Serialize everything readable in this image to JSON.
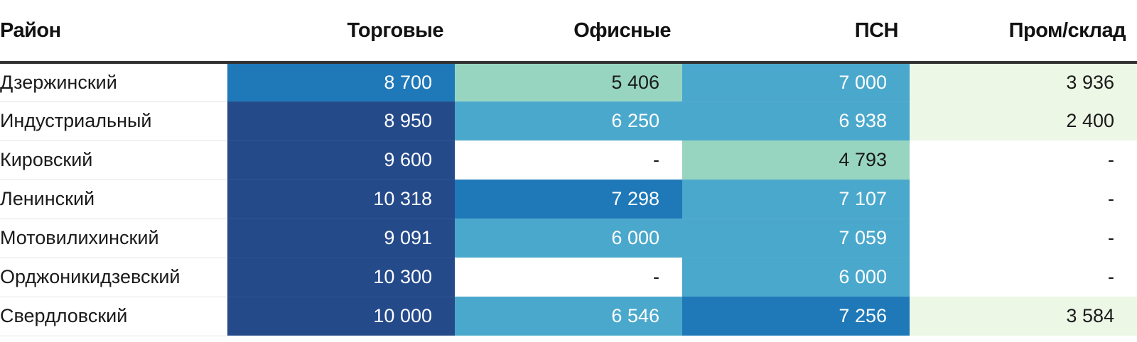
{
  "chart_data": {
    "type": "heatmap",
    "row_header": "Район",
    "columns": [
      "Торговые",
      "Офисные",
      "ПСН",
      "Пром/склад"
    ],
    "rows": [
      {
        "name": "Дзержинский",
        "values": [
          8700,
          5406,
          7000,
          3936
        ],
        "labels": [
          "8 700",
          "5 406",
          "7 000",
          "3 936"
        ]
      },
      {
        "name": "Индустриальный",
        "values": [
          8950,
          6250,
          6938,
          2400
        ],
        "labels": [
          "8 950",
          "6 250",
          "6 938",
          "2 400"
        ]
      },
      {
        "name": "Кировский",
        "values": [
          9600,
          null,
          4793,
          null
        ],
        "labels": [
          "9 600",
          "-",
          "4 793",
          "-"
        ]
      },
      {
        "name": "Ленинский",
        "values": [
          10318,
          7298,
          7107,
          null
        ],
        "labels": [
          "10 318",
          "7 298",
          "7 107",
          "-"
        ]
      },
      {
        "name": "Мотовилихинский",
        "values": [
          9091,
          6000,
          7059,
          null
        ],
        "labels": [
          "9 091",
          "6 000",
          "7 059",
          "-"
        ]
      },
      {
        "name": "Орджоникидзевский",
        "values": [
          10300,
          null,
          6000,
          null
        ],
        "labels": [
          "10 300",
          "-",
          "6 000",
          "-"
        ]
      },
      {
        "name": "Свердловский",
        "values": [
          10000,
          6546,
          7256,
          3584
        ],
        "labels": [
          "10 000",
          "6 546",
          "7 256",
          "3 584"
        ]
      }
    ],
    "color_scale": [
      {
        "max": 4000,
        "color": "#edf7e6",
        "text": "#1a1a1a"
      },
      {
        "max": 5500,
        "color": "#98d5c1",
        "text": "#1a1a1a"
      },
      {
        "max": 7200,
        "color": "#4aa8cc",
        "text": "#ffffff"
      },
      {
        "max": 8800,
        "color": "#1f78b8",
        "text": "#ffffff"
      },
      {
        "max": 20000,
        "color": "#244a8a",
        "text": "#ffffff"
      }
    ],
    "empty_color": "#ffffff",
    "empty_text_color": "#1a1a1a"
  }
}
